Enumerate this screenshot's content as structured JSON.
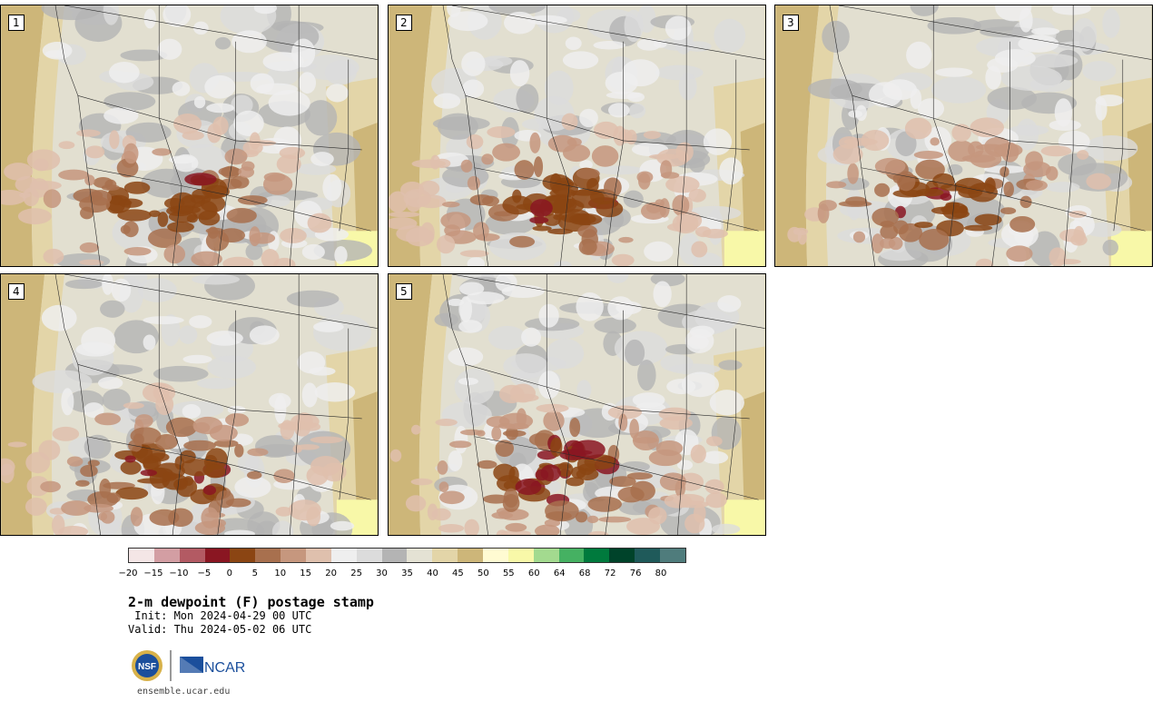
{
  "panels": [
    {
      "label": "1",
      "seed": 11,
      "intensity": 0.85
    },
    {
      "label": "2",
      "seed": 23,
      "intensity": 1.05
    },
    {
      "label": "3",
      "seed": 37,
      "intensity": 0.8
    },
    {
      "label": "4",
      "seed": 41,
      "intensity": 0.95
    },
    {
      "label": "5",
      "seed": 59,
      "intensity": 1.0
    }
  ],
  "colorbar": {
    "colors": [
      "#f4e6e6",
      "#d39ea3",
      "#b35a63",
      "#8a1622",
      "#8b4513",
      "#a8704e",
      "#c6977e",
      "#dfc0ad",
      "#efefef",
      "#dcdcdc",
      "#b4b4b4",
      "#e4e2d4",
      "#e3d5a8",
      "#cdb679",
      "#fffbd2",
      "#f8f8a8",
      "#a3da8f",
      "#45b162",
      "#007a3d",
      "#00432a",
      "#1f5a5a",
      "#4f7c7c"
    ],
    "tick_labels": [
      "−20",
      "−15",
      "−10",
      "−5",
      "0",
      "5",
      "10",
      "15",
      "20",
      "25",
      "30",
      "35",
      "40",
      "45",
      "50",
      "55",
      "60",
      "64",
      "68",
      "72",
      "76",
      "80"
    ]
  },
  "title": "2-m dewpoint (F) postage stamp",
  "init": " Init: Mon 2024-04-29 00 UTC",
  "valid": "Valid: Thu 2024-05-02 06 UTC",
  "logos": {
    "nsf": "NSF",
    "ncar": "NCAR"
  },
  "site": "ensemble.ucar.edu"
}
